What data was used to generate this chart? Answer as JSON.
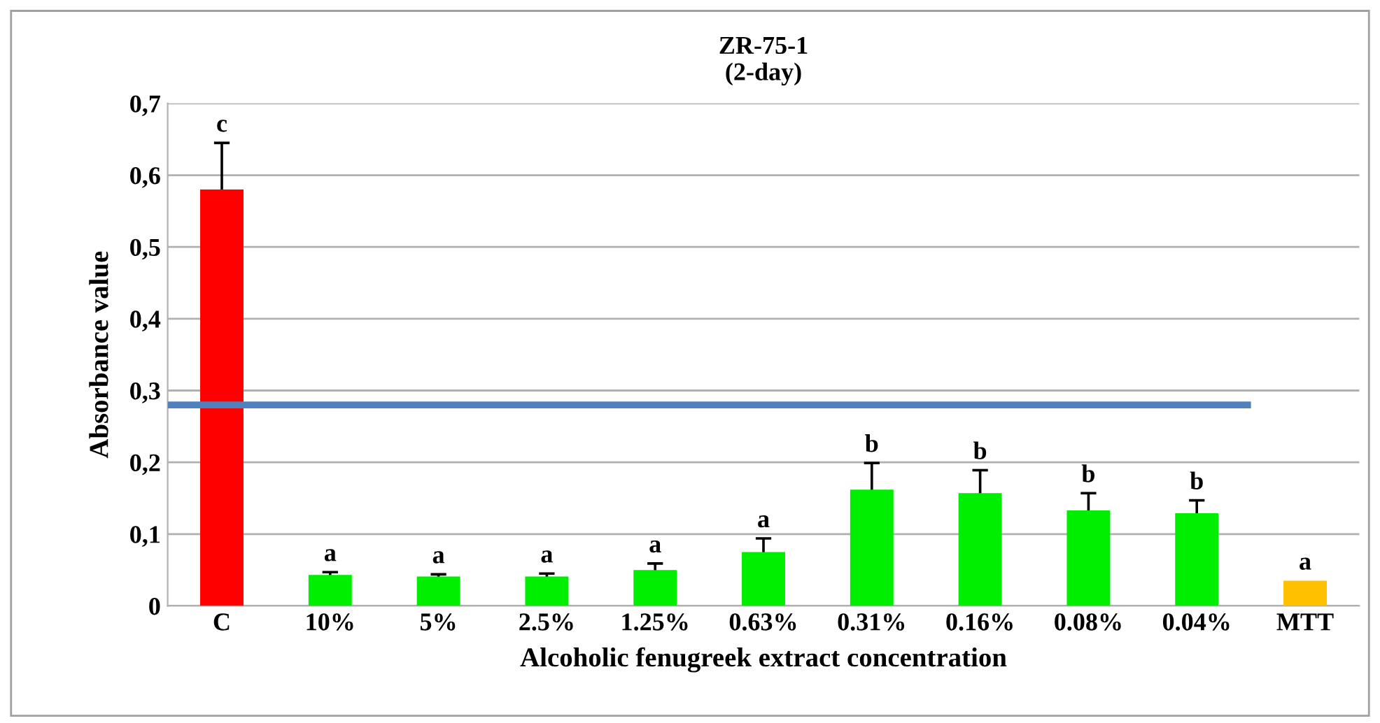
{
  "chart_data": {
    "type": "bar",
    "title": "ZR-75-1\n(2-day)",
    "xlabel": "Alcoholic fenugreek extract concentration",
    "ylabel": "Absorbance value",
    "categories": [
      "C",
      "10%",
      "5%",
      "2.5%",
      "1.25%",
      "0.63%",
      "0.31%",
      "0.16%",
      "0.08%",
      "0.04%",
      "MTT"
    ],
    "values": [
      0.58,
      0.043,
      0.041,
      0.041,
      0.05,
      0.075,
      0.162,
      0.157,
      0.133,
      0.129,
      0.035
    ],
    "errors": [
      0.065,
      0.004,
      0.003,
      0.004,
      0.009,
      0.019,
      0.037,
      0.032,
      0.024,
      0.018,
      null
    ],
    "colors": [
      "#ff0000",
      "#00ee00",
      "#00ee00",
      "#00ee00",
      "#00ee00",
      "#00ee00",
      "#00ee00",
      "#00ee00",
      "#00ee00",
      "#00ee00",
      "#ffc000"
    ],
    "ylim": [
      0,
      0.7
    ],
    "yticks": [
      0,
      {
        "value": 0.1,
        "label": "0,1"
      },
      {
        "value": 0.2,
        "label": "0,2"
      },
      {
        "value": 0.3,
        "label": "0,3"
      },
      {
        "value": 0.4,
        "label": "0,4"
      },
      {
        "value": 0.5,
        "label": "0,5"
      },
      {
        "value": 0.6,
        "label": "0,6"
      },
      {
        "value": 0.7,
        "label": "0,7"
      }
    ],
    "grid": "y",
    "ref_lines": [
      {
        "axis": "y",
        "value": 0.28,
        "color": "#4f81bd",
        "line_style": "solid"
      }
    ],
    "annotations": [
      "c",
      "a",
      "a",
      "a",
      "a",
      "a",
      "b",
      "b",
      "b",
      "b",
      "a"
    ]
  }
}
